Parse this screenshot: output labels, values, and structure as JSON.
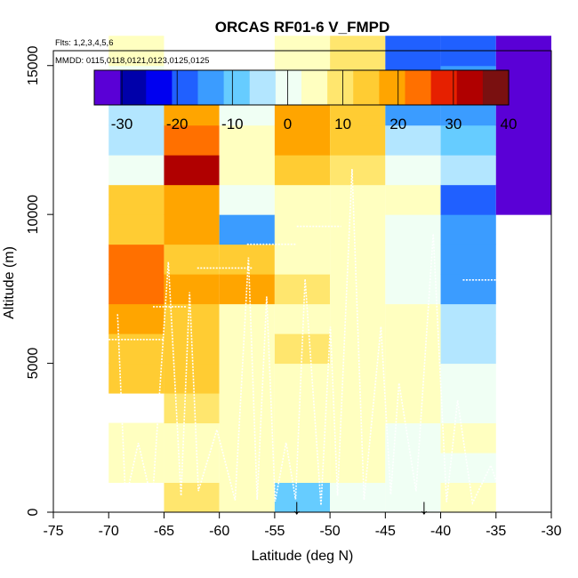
{
  "chart_data": {
    "type": "heatmap",
    "title": "ORCAS RF01-6 V_FMPD",
    "note_flights": "Flts: 1,2,3,4,5,6",
    "note_dates": "MMDD: 0115,0118,0121,0123,0125,0125",
    "xlabel": "Latitude (deg N)",
    "ylabel": "Altitude (m)",
    "xlim": [
      -75,
      -30
    ],
    "ylim": [
      0,
      15500
    ],
    "xticks": [
      -75,
      -70,
      -65,
      -60,
      -55,
      -50,
      -45,
      -40,
      -35,
      -30
    ],
    "yticks": [
      0,
      5000,
      10000,
      15000
    ],
    "colorbar": {
      "min": -35,
      "max": 40,
      "ticks": [
        -30,
        -20,
        -10,
        0,
        10,
        20,
        30,
        40
      ],
      "colors": [
        "#5a00d6",
        "#0000aa",
        "#0000f0",
        "#2060ff",
        "#3b9cff",
        "#66ccff",
        "#b3e6ff",
        "#f0fff4",
        "#ffffc0",
        "#ffe66e",
        "#ffcc33",
        "#ffa500",
        "#ff7000",
        "#e62000",
        "#b00000",
        "#7a1010"
      ]
    },
    "x_bins": [
      -70,
      -65,
      -60,
      -55,
      -50,
      -45,
      -40,
      -35,
      -30
    ],
    "alt_bin_m": 1000,
    "columns": [
      {
        "lat_start": -70,
        "lat_end": -65,
        "values": [
          null,
          3,
          3,
          null,
          12,
          15,
          17,
          23,
          24,
          16,
          13,
          2,
          -4,
          -4,
          1,
          3
        ]
      },
      {
        "lat_start": -65,
        "lat_end": -60,
        "values": [
          8,
          5,
          5,
          11,
          14,
          15,
          14,
          17,
          15,
          21,
          21,
          32,
          22,
          17,
          null,
          null
        ]
      },
      {
        "lat_start": -60,
        "lat_end": -55,
        "values": [
          5,
          5,
          3,
          5,
          6,
          7,
          5,
          19,
          13,
          -13,
          0,
          3,
          3,
          2,
          null,
          null
        ]
      },
      {
        "lat_start": -55,
        "lat_end": -50,
        "values": [
          -8,
          4,
          5,
          7,
          5,
          8,
          5,
          8,
          4,
          4,
          3,
          16,
          17,
          17,
          5,
          3
        ]
      },
      {
        "lat_start": -50,
        "lat_end": -45,
        "values": [
          -2,
          5,
          3,
          4,
          5,
          6,
          4,
          5,
          5,
          4,
          3,
          9,
          14,
          13,
          10,
          10
        ]
      },
      {
        "lat_start": -45,
        "lat_end": -40,
        "values": [
          0,
          1,
          1,
          5,
          5,
          4,
          4,
          2,
          -1,
          1,
          5,
          -2,
          -4,
          -12,
          -18,
          -20
        ]
      },
      {
        "lat_start": -40,
        "lat_end": -35,
        "values": [
          7,
          2,
          3,
          -2,
          -2,
          -3,
          -5,
          -12,
          -12,
          -12,
          -17,
          -3,
          -8,
          -12,
          -16,
          -18
        ]
      },
      {
        "lat_start": -35,
        "lat_end": -30,
        "values": [
          null,
          null,
          null,
          null,
          null,
          null,
          null,
          null,
          null,
          null,
          -31,
          -34,
          -33,
          -34,
          -35,
          -34
        ]
      }
    ],
    "track_markers": [
      {
        "label": "↓",
        "lat": -53
      },
      {
        "label": "↓",
        "lat": -41.5
      }
    ],
    "grid": false
  }
}
